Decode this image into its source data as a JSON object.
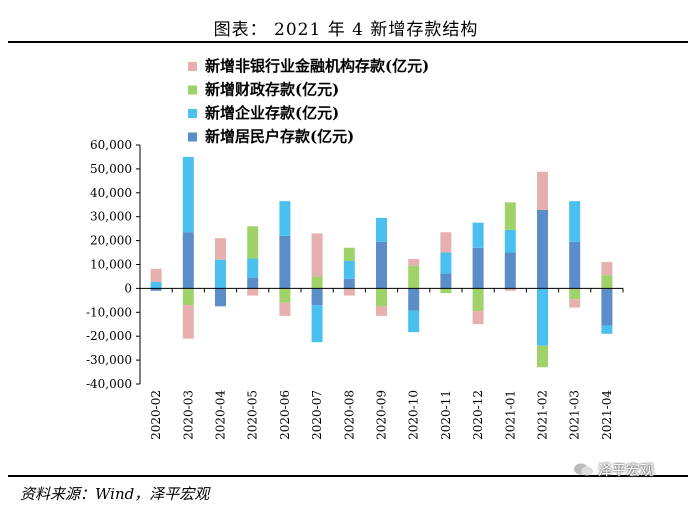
{
  "header": {
    "title": "图表： 2021 年 4 新增存款结构"
  },
  "footer": {
    "source": "资料来源：Wind，泽平宏观",
    "watermark": "泽平宏观"
  },
  "colors": {
    "nonbank": "#E6B0AE",
    "fiscal": "#9FD36A",
    "enterprise": "#49C0F0",
    "household": "#5B8DC8"
  },
  "chart_data": {
    "type": "bar",
    "stacked": true,
    "categories": [
      "2020-02",
      "2020-03",
      "2020-04",
      "2020-05",
      "2020-06",
      "2020-07",
      "2020-08",
      "2020-09",
      "2020-10",
      "2020-11",
      "2020-12",
      "2021-01",
      "2021-02",
      "2021-03",
      "2021-04"
    ],
    "ylim": [
      -40000,
      60000
    ],
    "yticks": [
      -40000,
      -30000,
      -20000,
      -10000,
      0,
      10000,
      20000,
      30000,
      40000,
      50000,
      60000
    ],
    "ytick_labels": [
      "-40,000",
      "-30,000",
      "-20,000",
      "-10,000",
      "0",
      "10,000",
      "20,000",
      "30,000",
      "40,000",
      "50,000",
      "60,000"
    ],
    "legend_position": "top-left",
    "series": [
      {
        "name": "新增居民户存款(亿元)",
        "key": "household",
        "values": [
          -1000,
          23500,
          -7500,
          4500,
          22000,
          -7000,
          4000,
          19500,
          -9300,
          6200,
          17000,
          15000,
          32800,
          19500,
          -15500
        ]
      },
      {
        "name": "新增企业存款(亿元)",
        "key": "enterprise",
        "values": [
          2700,
          31500,
          12000,
          8000,
          14500,
          -15500,
          7500,
          10000,
          -9000,
          8800,
          10500,
          9500,
          -24000,
          17000,
          -3500
        ]
      },
      {
        "name": "新增财政存款(亿元)",
        "key": "fiscal",
        "values": [
          0,
          -7000,
          0,
          13500,
          -6000,
          5000,
          5500,
          -7500,
          9500,
          -2000,
          -9500,
          11500,
          -9000,
          -4500,
          5500
        ]
      },
      {
        "name": "新增非银行业金融机构存款(亿元)",
        "key": "nonbank",
        "values": [
          5500,
          -14000,
          9000,
          -3000,
          -5500,
          18000,
          -3000,
          -4000,
          2800,
          8500,
          -5500,
          -1000,
          16000,
          -3500,
          5500
        ]
      }
    ],
    "legend_order": [
      "nonbank",
      "fiscal",
      "enterprise",
      "household"
    ]
  }
}
